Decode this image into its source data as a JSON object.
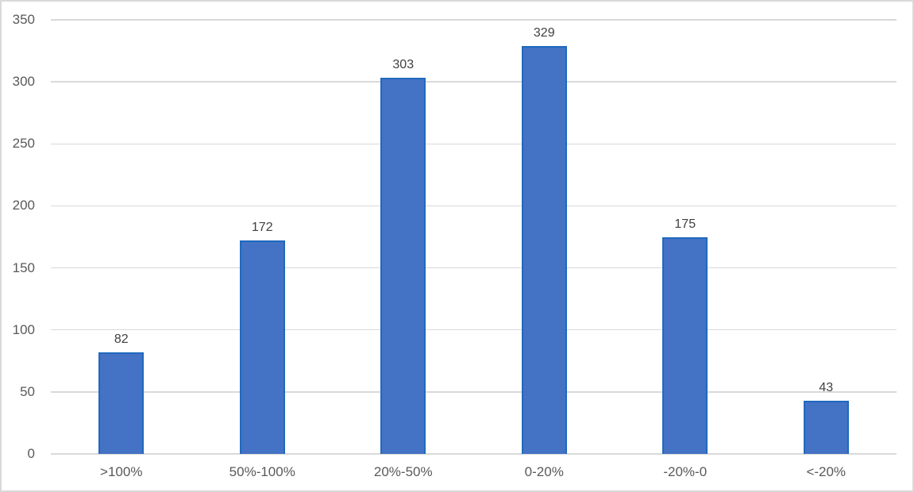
{
  "chart": {
    "background_color": "#FFFFFF",
    "frame_border_color": "#D9D9D9"
  },
  "chart_data": {
    "type": "bar",
    "title": "",
    "xlabel": "",
    "ylabel": "",
    "categories": [
      ">100%",
      "50%-100%",
      "20%-50%",
      "0-20%",
      "-20%-0",
      "<-20%"
    ],
    "values": [
      82,
      172,
      303,
      329,
      175,
      43
    ],
    "data_labels": [
      "82",
      "172",
      "303",
      "329",
      "175",
      "43"
    ],
    "ylim": [
      0,
      350
    ],
    "yticks": [
      0,
      50,
      100,
      150,
      200,
      250,
      300,
      350
    ],
    "grid": true,
    "legend_position": "none",
    "bar_fill_color": "#4472C4",
    "bar_border_color": "#2069BE",
    "gridline_color": "#D9D9D9",
    "axis_line_color": "#D9D9D9",
    "axis_label_color": "#595959",
    "data_label_color": "#404040"
  }
}
